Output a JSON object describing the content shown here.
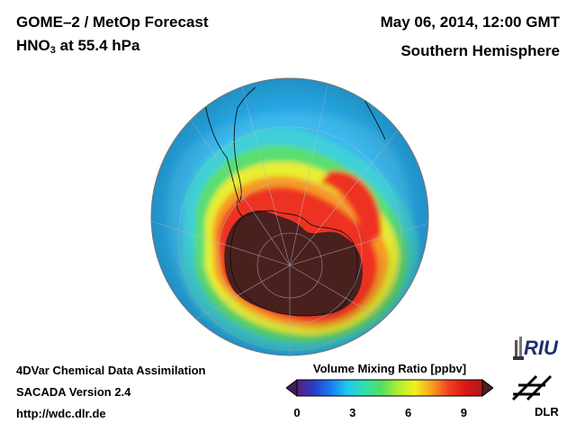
{
  "header": {
    "title_line1": "GOME–2 / MetOp Forecast",
    "species": "HNO",
    "species_sub": "3",
    "level": " at 55.4 hPa",
    "date": "May 06, 2014, 12:00 GMT",
    "region": "Southern Hemisphere"
  },
  "footer": {
    "line1": "4DVar Chemical Data Assimilation",
    "line2": "SACADA Version 2.4",
    "line3": "http://wdc.dlr.de"
  },
  "colorbar": {
    "title": "Volume Mixing Ratio [ppbv]",
    "ticks": [
      "0",
      "3",
      "6",
      "9"
    ],
    "min": 0,
    "max": 10,
    "colors": [
      "#5a1f7a",
      "#2a3cc8",
      "#1a7cf0",
      "#20c8f0",
      "#30e0b0",
      "#50e060",
      "#b0ee30",
      "#f0f020",
      "#f8a020",
      "#f04020",
      "#d81818",
      "#b01818"
    ]
  },
  "logos": {
    "riu": "RIU",
    "dlr": "DLR"
  },
  "map": {
    "projection": "orthographic",
    "center": "South Pole",
    "units": "ppbv",
    "background_value": 3
  }
}
